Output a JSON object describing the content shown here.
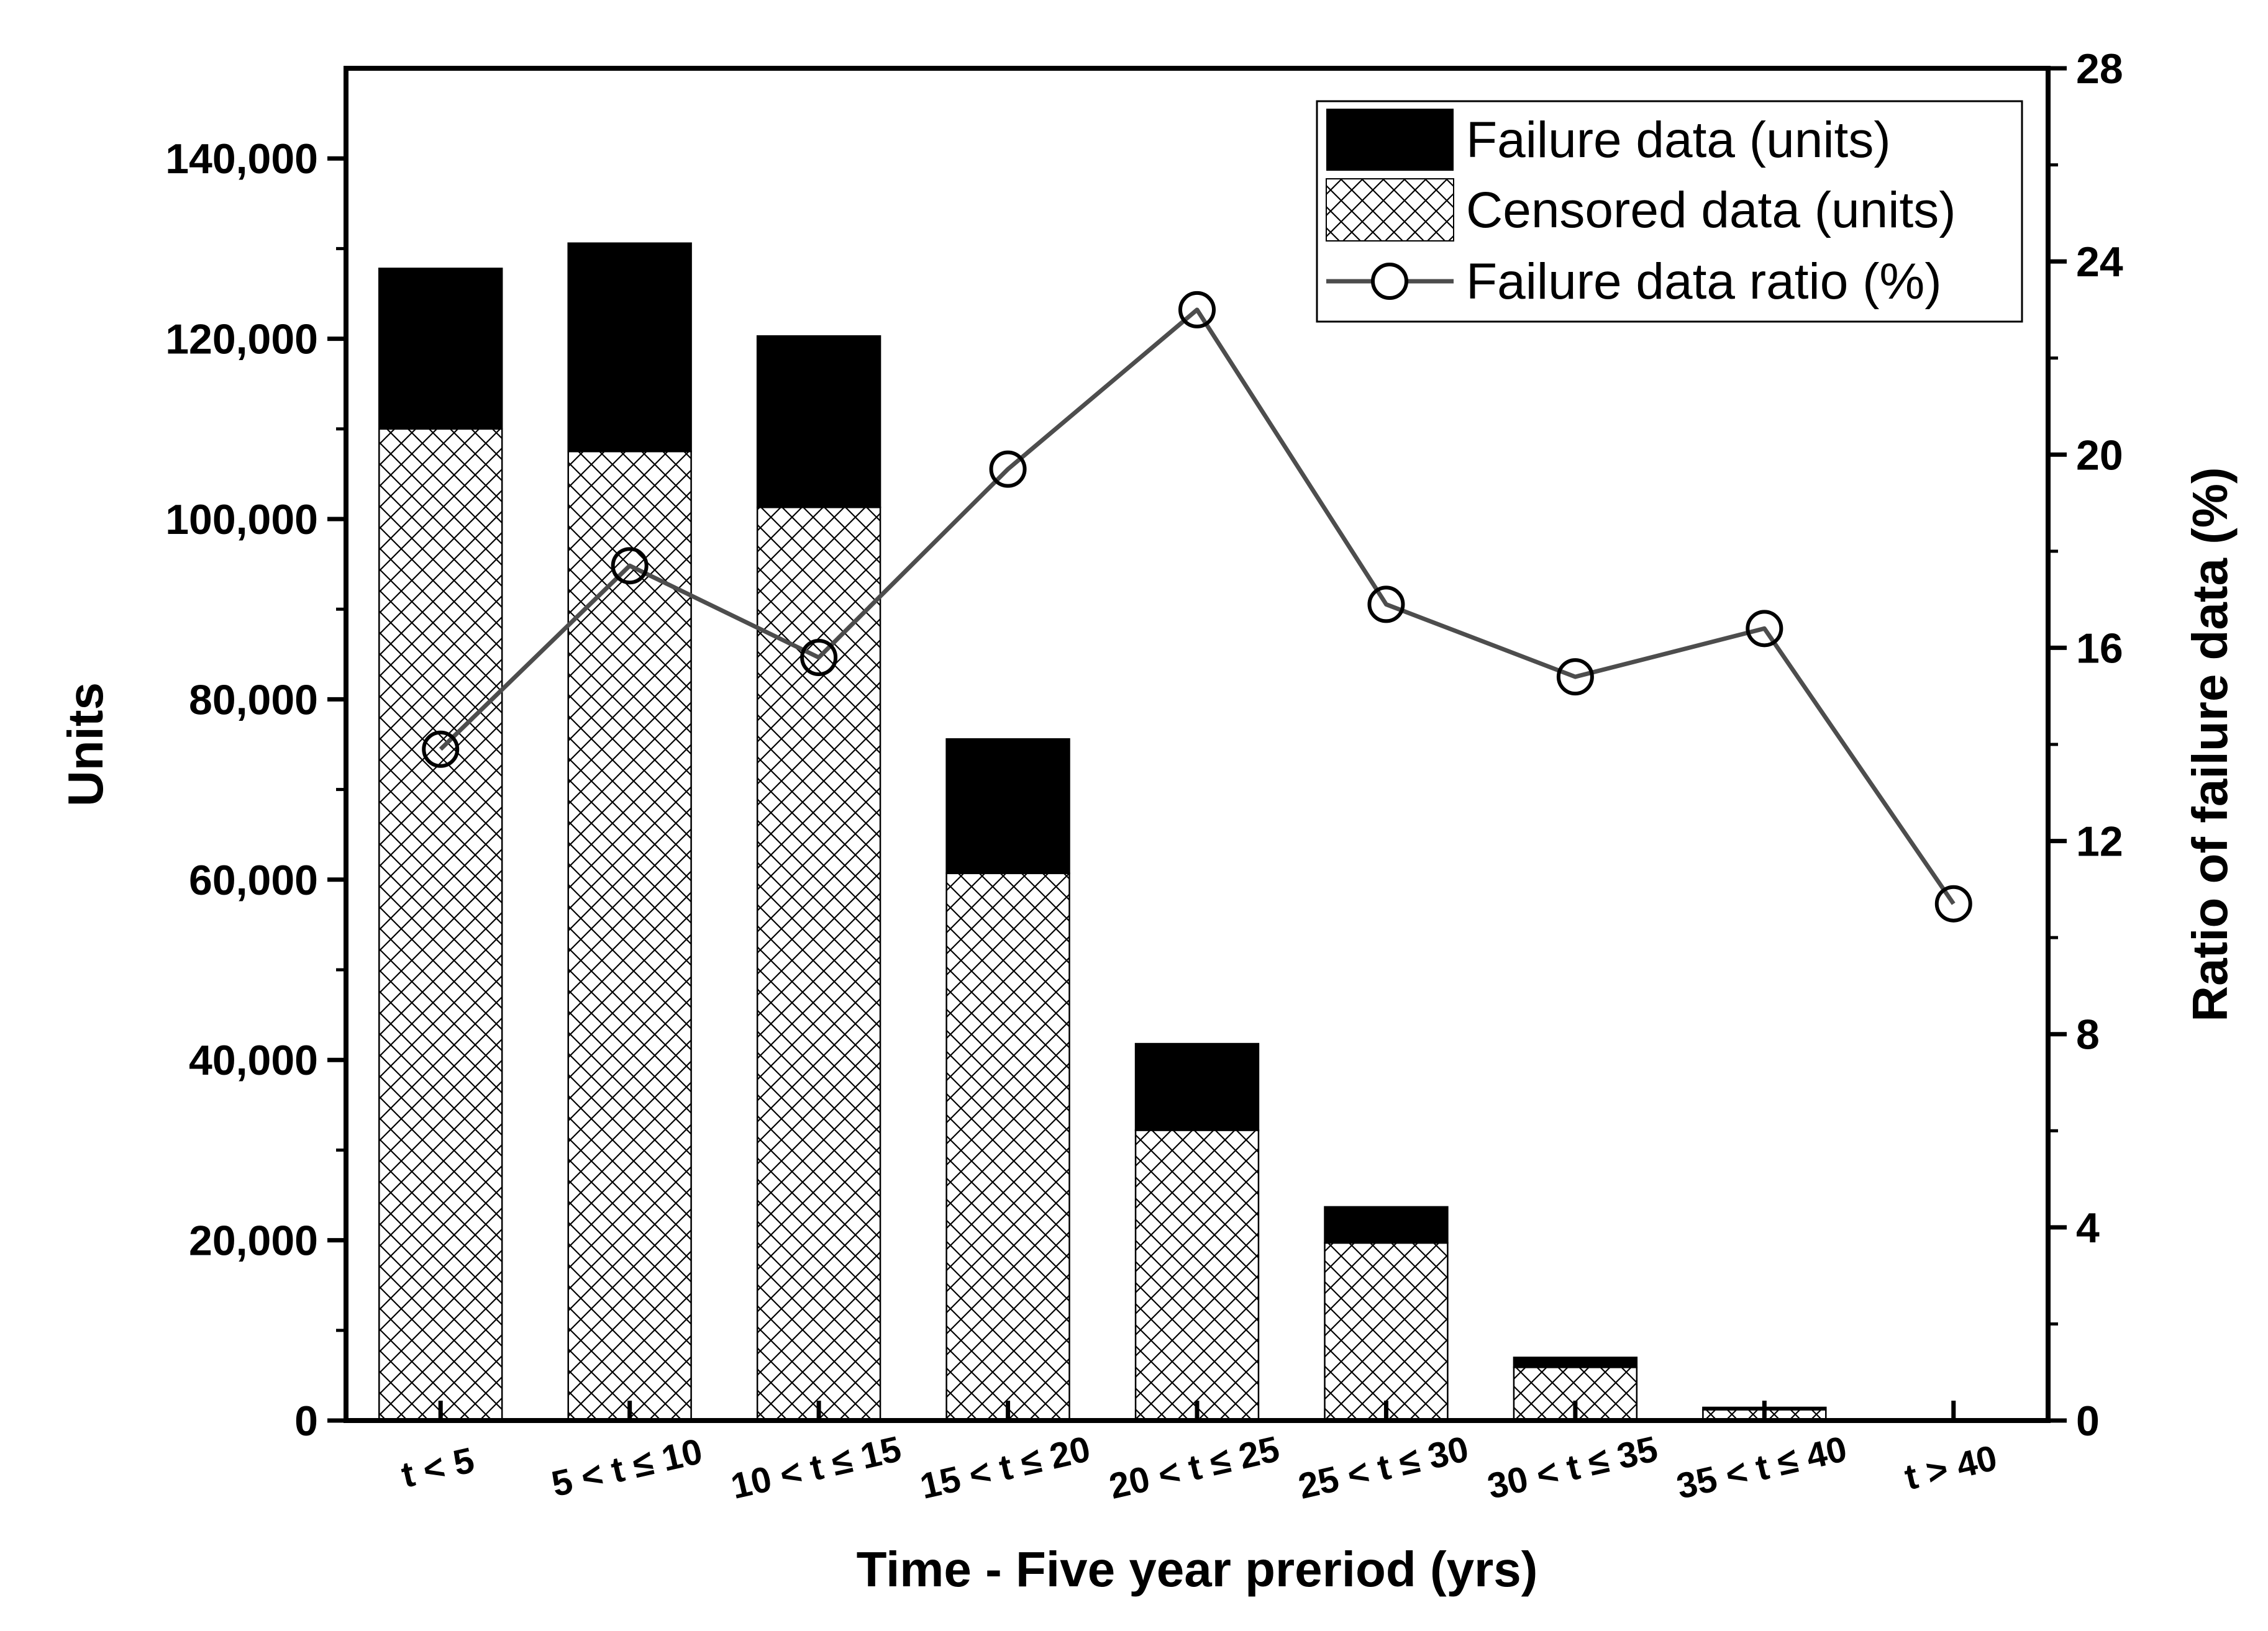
{
  "chart_data": {
    "type": "bar",
    "stacked": true,
    "categories": [
      "t < 5",
      "5 < t ≤ 10",
      "10 < t ≤ 15",
      "15 < t ≤ 20",
      "20 < t ≤ 25",
      "25 < t ≤ 30",
      "30 < t ≤ 35",
      "35 < t ≤ 40",
      "t > 40"
    ],
    "series": [
      {
        "name": "Censored data (units)",
        "type": "bar",
        "axis": "left",
        "pattern": "crosshatch",
        "values": [
          110000,
          107500,
          101300,
          60700,
          32200,
          19700,
          5900,
          1200,
          150
        ]
      },
      {
        "name": "Failure data (units)",
        "type": "bar",
        "axis": "left",
        "color": "#000000",
        "values": [
          17800,
          23100,
          19000,
          14900,
          9600,
          4000,
          1100,
          250,
          20
        ]
      },
      {
        "name": "Failure data ratio (%)",
        "type": "line",
        "axis": "right",
        "color": "#4d4d4d",
        "marker": "open-circle",
        "values": [
          13.9,
          17.7,
          15.8,
          19.7,
          23.0,
          16.9,
          15.4,
          16.4,
          10.7
        ]
      }
    ],
    "xlabel": "Time - Five year preriod (yrs)",
    "ylabel": "Units",
    "y2label": "Ratio of failure data (%)",
    "ylim": [
      0,
      150000
    ],
    "y2lim": [
      0,
      28
    ],
    "yticks": [
      0,
      20000,
      40000,
      60000,
      80000,
      100000,
      120000,
      140000
    ],
    "ytick_labels": [
      "0",
      "20,000",
      "40,000",
      "60,000",
      "80,000",
      "100,000",
      "120,000",
      "140,000"
    ],
    "y2ticks": [
      0,
      4,
      8,
      12,
      16,
      20,
      24,
      28
    ],
    "y2tick_labels": [
      "0",
      "4",
      "8",
      "12",
      "16",
      "20",
      "24",
      "28"
    ],
    "grid": false,
    "legend_position": "top-right"
  }
}
